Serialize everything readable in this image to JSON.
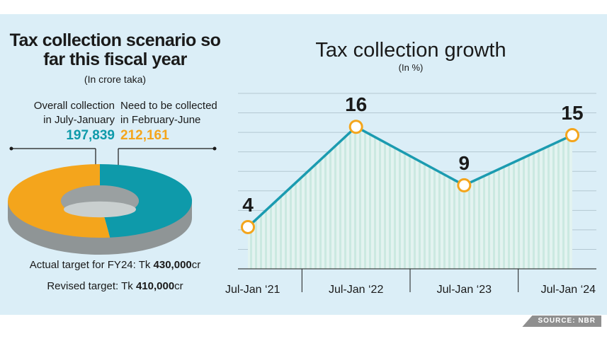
{
  "left_panel": {
    "title": "Tax collection scenario so far this fiscal year",
    "subtitle": "(In crore taka)",
    "overall_label_line1": "Overall collection",
    "overall_label_line2": "in July-January",
    "overall_value": "197,839",
    "need_label_line1": "Need to be collected",
    "need_label_line2": "in February-June",
    "need_value": "212,161",
    "actual_target_prefix": "Actual target for FY24: Tk ",
    "actual_target_value": "430,000",
    "actual_target_suffix": "cr",
    "revised_target_prefix": "Revised target: Tk ",
    "revised_target_value": "410,000",
    "revised_target_suffix": "cr"
  },
  "source": "SOURCE: NBR",
  "chart_data": [
    {
      "type": "pie",
      "title": "Tax collection scenario so far this fiscal year",
      "unit": "crore taka",
      "donut": true,
      "slices": [
        {
          "label": "Overall collection in July-January",
          "value": 197839,
          "color": "#0e9aaa"
        },
        {
          "label": "Need to be collected in February-June",
          "value": 212161,
          "color": "#f4a51c"
        }
      ]
    },
    {
      "type": "line",
      "title": "Tax collection growth",
      "subtitle": "(In %)",
      "categories": [
        "Jul-Jan ‘21",
        "Jul-Jan ‘22",
        "Jul-Jan ‘23",
        "Jul-Jan ‘24"
      ],
      "values": [
        4,
        16,
        9,
        15
      ],
      "data_labels": [
        "4",
        "16",
        "9",
        "15"
      ],
      "ylim": [
        -1,
        20
      ],
      "grid": true,
      "line_color": "#1b9bb0",
      "marker_color": "#f4a51c"
    }
  ]
}
